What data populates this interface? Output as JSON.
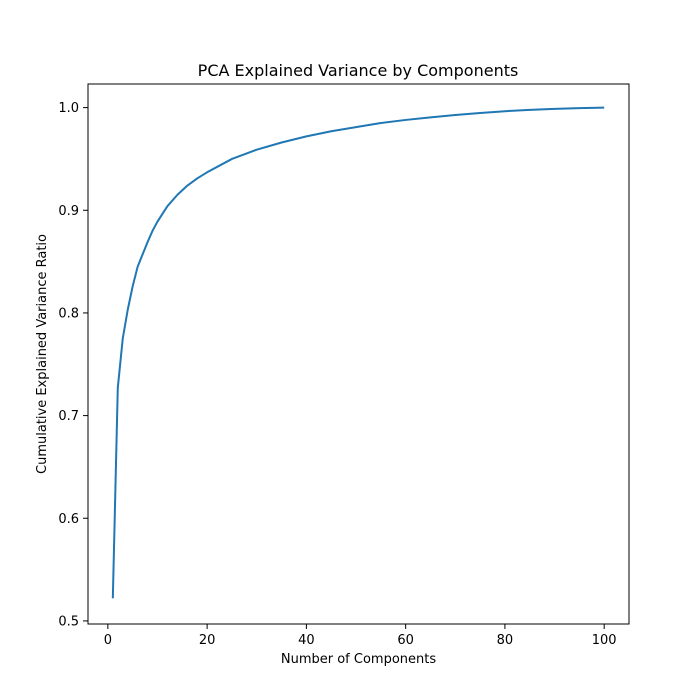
{
  "chart_data": {
    "type": "line",
    "title": "PCA Explained Variance by Components",
    "xlabel": "Number of Components",
    "ylabel": "Cumulative Explained Variance Ratio",
    "xlim": [
      -4,
      105
    ],
    "ylim": [
      0.497,
      1.023
    ],
    "xticks": [
      0,
      20,
      40,
      60,
      80,
      100
    ],
    "xtick_labels": [
      "0",
      "20",
      "40",
      "60",
      "80",
      "100"
    ],
    "yticks": [
      0.5,
      0.6,
      0.7,
      0.8,
      0.9,
      1.0
    ],
    "ytick_labels": [
      "0.5",
      "0.6",
      "0.7",
      "0.8",
      "0.9",
      "1.0"
    ],
    "grid": false,
    "series": [
      {
        "color": "#1f77b4",
        "x": [
          1,
          2,
          3,
          4,
          5,
          6,
          7,
          8,
          9,
          10,
          12,
          14,
          16,
          18,
          20,
          25,
          30,
          35,
          40,
          45,
          50,
          55,
          60,
          65,
          70,
          75,
          80,
          85,
          90,
          95,
          100
        ],
        "y": [
          0.522,
          0.727,
          0.775,
          0.803,
          0.826,
          0.845,
          0.857,
          0.869,
          0.88,
          0.889,
          0.904,
          0.915,
          0.924,
          0.931,
          0.937,
          0.95,
          0.959,
          0.966,
          0.972,
          0.977,
          0.981,
          0.985,
          0.988,
          0.9905,
          0.9928,
          0.9948,
          0.9965,
          0.9978,
          0.9988,
          0.9995,
          1.0
        ]
      }
    ]
  }
}
